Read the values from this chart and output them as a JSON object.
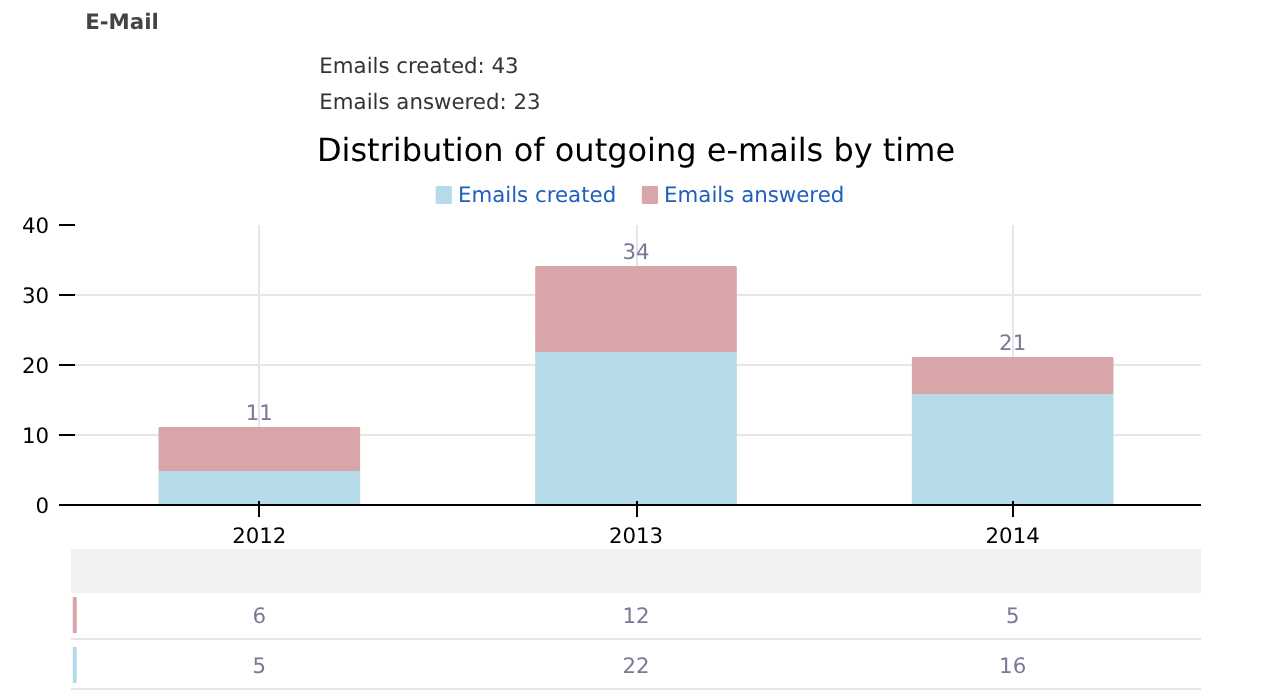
{
  "chart_data": {
    "type": "bar",
    "title": "Distribution of outgoing e-mails by time",
    "subtitle": "E-Mail",
    "annotations": [
      "Emails created: 43",
      "Emails answered: 23"
    ],
    "categories": [
      "2012",
      "2013",
      "2014"
    ],
    "series": [
      {
        "name": "Emails created",
        "color": "#b5dbe9",
        "values": [
          5,
          22,
          16
        ]
      },
      {
        "name": "Emails answered",
        "color": "#d8a6a9",
        "values": [
          6,
          12,
          5
        ]
      }
    ],
    "stacked": true,
    "totals": [
      "11",
      "34",
      "21"
    ],
    "data_labels": true,
    "ylim": [
      0,
      40
    ],
    "yticks": [
      0,
      10,
      20,
      30,
      40
    ],
    "grid": true,
    "legend": "top"
  }
}
